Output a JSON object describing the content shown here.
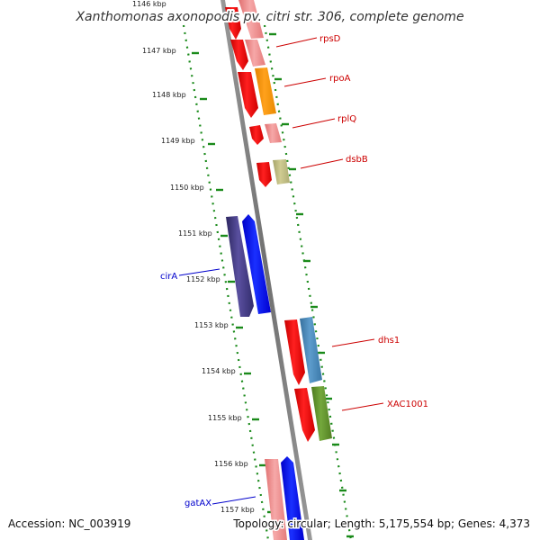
{
  "title": "Xanthomonas axonopodis pv. citri str. 306, complete genome",
  "footer": {
    "accession": "Accession: NC_003919",
    "topology": "Topology: circular; Length: 5,175,554 bp; Genes: 4,373"
  },
  "ticks": [
    "1146 kbp",
    "1147 kbp",
    "1148 kbp",
    "1149 kbp",
    "1150 kbp",
    "1151 kbp",
    "1152 kbp",
    "1153 kbp",
    "1154 kbp",
    "1155 kbp",
    "1156 kbp",
    "1157 kbp"
  ],
  "gene_labels": {
    "rpsD": "rpsD",
    "rpoA": "rpoA",
    "rplQ": "rplQ",
    "dsbB": "dsbB",
    "cirA": "cirA",
    "dhs1": "dhs1",
    "xac1001": "XAC1001",
    "gatAX": "gatAX"
  },
  "colors": {
    "forward_label": "#cc0000",
    "reverse_label": "#0000cc",
    "tick_marks": "#1a8a1a",
    "backbone": "#808080"
  }
}
